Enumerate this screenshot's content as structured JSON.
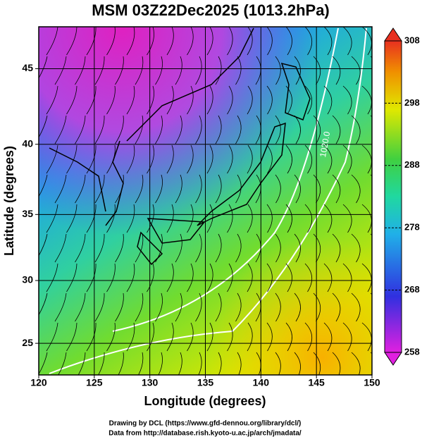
{
  "chart_data": {
    "type": "map",
    "title": "MSM 03Z22Dec2025 (1013.2hPa)",
    "xlabel": "Longitude (degrees)",
    "ylabel": "Latitude  (degrees)",
    "xlim": [
      120,
      150
    ],
    "ylim": [
      22.4,
      47.6
    ],
    "xticks": [
      120,
      125,
      130,
      135,
      140,
      145,
      150
    ],
    "yticks": [
      25,
      30,
      35,
      40,
      45
    ],
    "projection": "mercator",
    "grid": true,
    "colorbar": {
      "lim": [
        258,
        308
      ],
      "ticks": [
        258,
        268,
        278,
        288,
        298,
        308
      ]
    },
    "contour_labels": [
      "1020.0"
    ],
    "footer": [
      "Drawing by DCL (https://www.gfd-dennou.org/library/dcl/)",
      "Data from http://database.rish.kyoto-u.ac.jp/arch/jmadata/"
    ]
  }
}
